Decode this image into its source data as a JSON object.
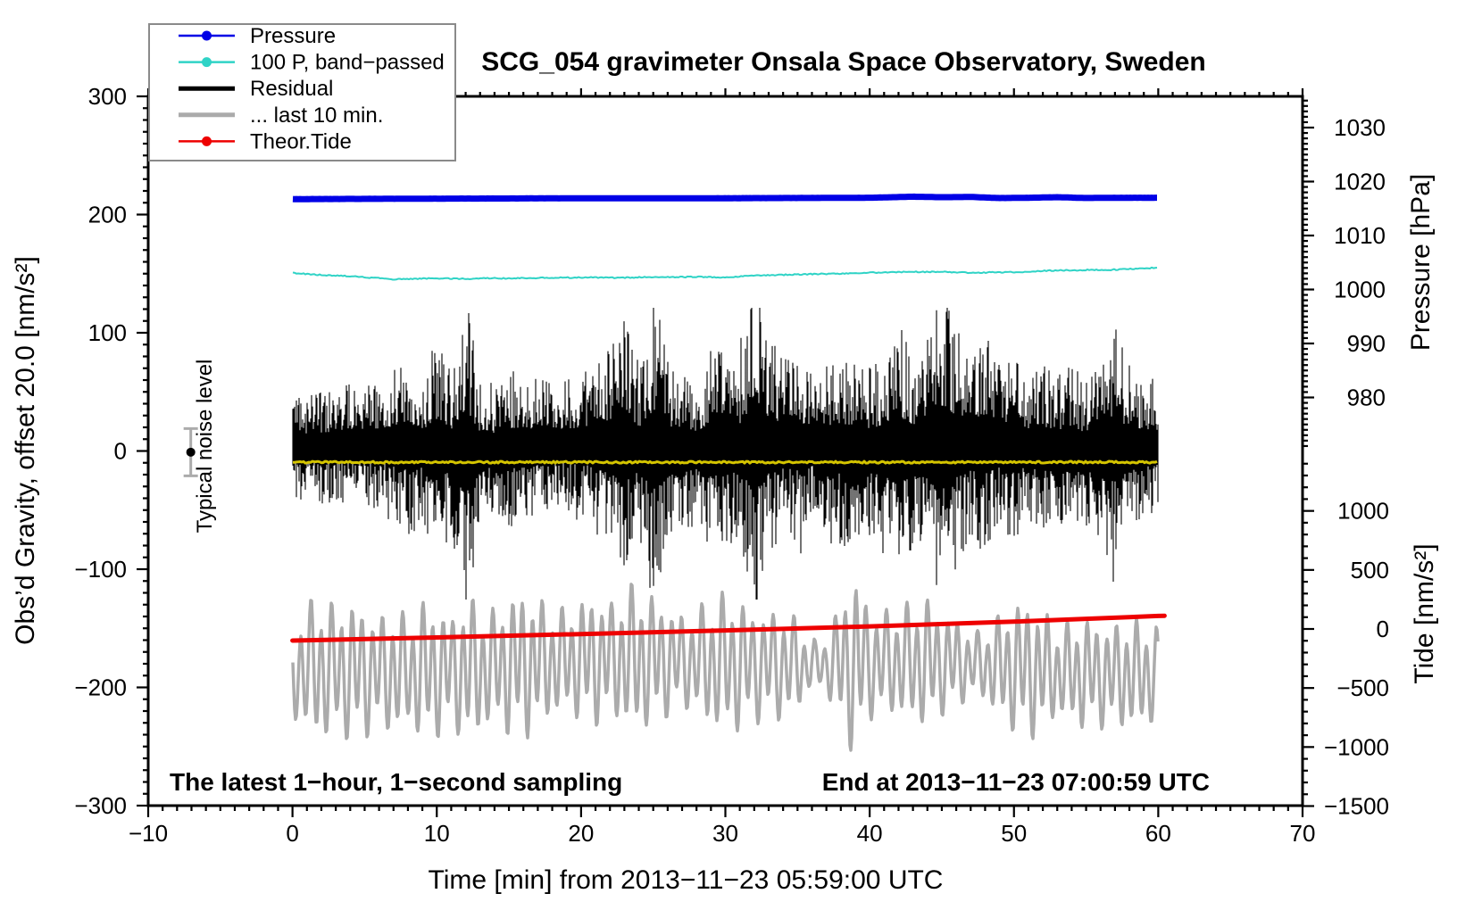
{
  "title": "SCG_054 gravimeter Onsala Space Observatory, Sweden",
  "annotations": {
    "sampling_note": "The latest 1−hour, 1−second sampling",
    "end_note": "End at 2013−11−23 07:00:59 UTC",
    "noise_label": "Typical noise level"
  },
  "axes": {
    "x": {
      "label": "Time [min] from 2013−11−23 05:59:00 UTC",
      "range": [
        -10,
        70
      ],
      "major_ticks": [
        -10,
        0,
        10,
        20,
        30,
        40,
        50,
        60,
        70
      ],
      "minor_step": 1
    },
    "gravity": {
      "label": "Obs’d Gravity, offset 20.0 [nm/s²]",
      "range": [
        300,
        -300
      ],
      "major_ticks": [
        300,
        200,
        100,
        0,
        -100,
        -200,
        -300
      ],
      "minor_step": 10
    },
    "pressure": {
      "label": "Pressure [hPa]",
      "major_ticks": [
        1030,
        1020,
        1010,
        1000,
        990,
        980
      ],
      "minor_step": 1,
      "shown_range": [
        1035,
        971
      ]
    },
    "tide": {
      "label": "Tide [nm/s²]",
      "major_ticks": [
        1000,
        500,
        0,
        -500,
        -1000,
        -1500
      ],
      "minor_step": 100,
      "shown_range": [
        1400,
        -1500
      ]
    }
  },
  "legend": [
    {
      "label": "Pressure",
      "color": "#0000E6",
      "line_width": 2.5,
      "dot": true
    },
    {
      "label": "100 P, band−passed",
      "color": "#2FD3C6",
      "line_width": 2.5,
      "dot": true
    },
    {
      "label": "Residual",
      "color": "#000000",
      "line_width": 5,
      "dot": false
    },
    {
      "label": "... last 10 min.",
      "color": "#ABABAB",
      "line_width": 5,
      "dot": false
    },
    {
      "label": "Theor.Tide",
      "color": "#EE0000",
      "line_width": 2.5,
      "dot": true
    }
  ],
  "chart_data": {
    "type": "line",
    "title": "SCG_054 gravimeter Onsala Space Observatory, Sweden",
    "x_unit": "minutes from 2013-11-23 05:59:00 UTC",
    "x_range_shown": [
      -10,
      70
    ],
    "data_span_min": [
      0,
      60
    ],
    "series": [
      {
        "name": "Pressure",
        "axis": "pressure_hPa",
        "color": "#0000E6",
        "width": 7,
        "points": [
          [
            0,
            1016.75
          ],
          [
            6,
            1016.8
          ],
          [
            12,
            1016.85
          ],
          [
            20,
            1016.9
          ],
          [
            28,
            1016.9
          ],
          [
            34,
            1016.95
          ],
          [
            40,
            1017.0
          ],
          [
            43,
            1017.2
          ],
          [
            45,
            1017.1
          ],
          [
            47,
            1017.15
          ],
          [
            49,
            1016.95
          ],
          [
            51,
            1017.0
          ],
          [
            53,
            1017.1
          ],
          [
            55,
            1016.95
          ],
          [
            57,
            1017.0
          ],
          [
            60,
            1017.0
          ]
        ],
        "jitter": 0.1
      },
      {
        "name": "100 P, band-passed",
        "axis": "gravity_nm_s2",
        "color": "#2FD3C6",
        "width": 2,
        "points": [
          [
            0,
            150.6
          ],
          [
            2,
            148.9
          ],
          [
            4,
            147.9
          ],
          [
            7,
            145.3
          ],
          [
            9,
            145.8
          ],
          [
            10,
            146.0
          ],
          [
            12,
            145.6
          ],
          [
            14,
            146.2
          ],
          [
            15,
            145.9
          ],
          [
            17,
            146.4
          ],
          [
            20,
            146.8
          ],
          [
            22,
            146.5
          ],
          [
            24,
            146.9
          ],
          [
            26,
            147.0
          ],
          [
            28,
            147.3
          ],
          [
            30,
            146.9
          ],
          [
            32,
            148.3
          ],
          [
            34,
            149.0
          ],
          [
            35,
            149.4
          ],
          [
            37,
            149.9
          ],
          [
            38,
            150.0
          ],
          [
            40,
            150.8
          ],
          [
            41,
            151.2
          ],
          [
            42,
            151.3
          ],
          [
            44,
            151.6
          ],
          [
            45,
            151.7
          ],
          [
            46,
            151.2
          ],
          [
            47,
            150.9
          ],
          [
            48,
            151.0
          ],
          [
            50,
            151.3
          ],
          [
            51,
            151.8
          ],
          [
            52,
            152.4
          ],
          [
            54,
            152.9
          ],
          [
            55,
            153.2
          ],
          [
            56,
            153.0
          ],
          [
            58,
            153.9
          ],
          [
            59,
            154.3
          ],
          [
            60,
            155.3
          ]
        ],
        "jitter": 0.9
      },
      {
        "name": "Residual",
        "axis": "gravity_nm_s2",
        "color": "#000000",
        "representation": "noise_band",
        "mean": -6,
        "typical_peak": 45,
        "burst_peak": 115,
        "envelope": [
          [
            0,
            30
          ],
          [
            2,
            34
          ],
          [
            4,
            38
          ],
          [
            6,
            40
          ],
          [
            8,
            55
          ],
          [
            9,
            45
          ],
          [
            10,
            70
          ],
          [
            11,
            50
          ],
          [
            12,
            100
          ],
          [
            13,
            45
          ],
          [
            14,
            40
          ],
          [
            15,
            50
          ],
          [
            16,
            45
          ],
          [
            18,
            38
          ],
          [
            20,
            42
          ],
          [
            22,
            65
          ],
          [
            23,
            80
          ],
          [
            24,
            52
          ],
          [
            25,
            95
          ],
          [
            26,
            60
          ],
          [
            27,
            52
          ],
          [
            28,
            45
          ],
          [
            29,
            60
          ],
          [
            30,
            68
          ],
          [
            31,
            52
          ],
          [
            32,
            110
          ],
          [
            33,
            68
          ],
          [
            34,
            52
          ],
          [
            35,
            60
          ],
          [
            36,
            45
          ],
          [
            37,
            52
          ],
          [
            38,
            60
          ],
          [
            39,
            55
          ],
          [
            40,
            52
          ],
          [
            41,
            60
          ],
          [
            42,
            82
          ],
          [
            43,
            60
          ],
          [
            44,
            68
          ],
          [
            45,
            100
          ],
          [
            46,
            75
          ],
          [
            47,
            60
          ],
          [
            48,
            68
          ],
          [
            49,
            52
          ],
          [
            50,
            60
          ],
          [
            51,
            45
          ],
          [
            52,
            52
          ],
          [
            53,
            45
          ],
          [
            54,
            52
          ],
          [
            55,
            45
          ],
          [
            56,
            60
          ],
          [
            57,
            75
          ],
          [
            58,
            52
          ],
          [
            59,
            45
          ],
          [
            60,
            40
          ]
        ]
      },
      {
        "name": "Residual smoothed (yellow overlay)",
        "axis": "gravity_nm_s2",
        "color": "#D4C400",
        "width": 3,
        "points": [
          [
            0,
            -9.5
          ],
          [
            60,
            -9.5
          ]
        ],
        "jitter": 1.6
      },
      {
        "name": "... last 10 min. (residual, magnified microseism)",
        "axis": "gravity_nm_s2",
        "color": "#ABABAB",
        "representation": "oscillation",
        "center": -184,
        "period_s": 42,
        "amplitude": [
          [
            0,
            42
          ],
          [
            1,
            53
          ],
          [
            2,
            60
          ],
          [
            3,
            53
          ],
          [
            4,
            57
          ],
          [
            5,
            53
          ],
          [
            6,
            45
          ],
          [
            7,
            53
          ],
          [
            8,
            45
          ],
          [
            9,
            57
          ],
          [
            10,
            53
          ],
          [
            11,
            45
          ],
          [
            12,
            60
          ],
          [
            13,
            53
          ],
          [
            14,
            45
          ],
          [
            15,
            57
          ],
          [
            16,
            60
          ],
          [
            17,
            53
          ],
          [
            18,
            45
          ],
          [
            19,
            42
          ],
          [
            20,
            49
          ],
          [
            21,
            53
          ],
          [
            22,
            45
          ],
          [
            23,
            57
          ],
          [
            24,
            60
          ],
          [
            25,
            53
          ],
          [
            26,
            45
          ],
          [
            27,
            38
          ],
          [
            28,
            42
          ],
          [
            29,
            53
          ],
          [
            30,
            57
          ],
          [
            31,
            53
          ],
          [
            32,
            45
          ],
          [
            33,
            45
          ],
          [
            34,
            45
          ],
          [
            35,
            38
          ],
          [
            36,
            19
          ],
          [
            37,
            23
          ],
          [
            38,
            53
          ],
          [
            39,
            75
          ],
          [
            40,
            45
          ],
          [
            41,
            42
          ],
          [
            42,
            45
          ],
          [
            43,
            49
          ],
          [
            44,
            53
          ],
          [
            45,
            42
          ],
          [
            46,
            38
          ],
          [
            47,
            26
          ],
          [
            48,
            30
          ],
          [
            49,
            42
          ],
          [
            50,
            53
          ],
          [
            51,
            57
          ],
          [
            52,
            49
          ],
          [
            53,
            38
          ],
          [
            54,
            42
          ],
          [
            55,
            45
          ],
          [
            56,
            42
          ],
          [
            57,
            42
          ],
          [
            58,
            45
          ],
          [
            59,
            42
          ],
          [
            60,
            40
          ]
        ]
      },
      {
        "name": "Theor.Tide",
        "axis": "tide_nm_s2",
        "color": "#EE0000",
        "width": 5,
        "points": [
          [
            0,
            -98
          ],
          [
            10,
            -72
          ],
          [
            20,
            -43
          ],
          [
            30,
            -12
          ],
          [
            40,
            22
          ],
          [
            50,
            62
          ],
          [
            60,
            110
          ]
        ],
        "jitter": 0
      }
    ],
    "noise_marker": {
      "t_min": -7.05,
      "gravity": -1,
      "error": 20,
      "bar_color": "#ABABAB",
      "dot_color": "#000000"
    }
  }
}
